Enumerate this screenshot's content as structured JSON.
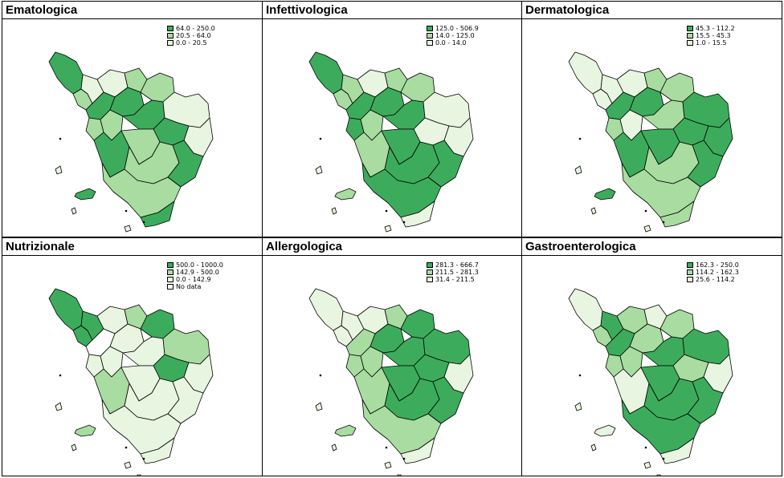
{
  "colors": {
    "high": "#3cac5c",
    "mid": "#a8dca0",
    "low": "#e8f5e0",
    "nodata": "#ffffff",
    "border": "#000000"
  },
  "maps": [
    {
      "title": "Ematologica",
      "legend": [
        {
          "label": "64.0 - 250.0",
          "cls": "high"
        },
        {
          "label": "20.5 - 64.0",
          "cls": "mid"
        },
        {
          "label": "0.0 - 20.5",
          "cls": "low"
        }
      ],
      "regions": {
        "NW": "high",
        "N1": "mid",
        "N2": "low",
        "N3": "low",
        "N4": "mid",
        "N5": "mid",
        "W1": "high",
        "W2": "mid",
        "C1": "high",
        "C2": "mid",
        "C3": "high",
        "C4": "high",
        "E1": "low",
        "E2": "high",
        "E3": "low",
        "S1": "mid",
        "S2": "mid",
        "SE": "high",
        "SW": "mid",
        "CS": "high"
      }
    },
    {
      "title": "Infettivologica",
      "legend": [
        {
          "label": "125.0 - 506.9",
          "cls": "high"
        },
        {
          "label": "14.0 - 125.0",
          "cls": "mid"
        },
        {
          "label": "0.0 - 14.0",
          "cls": "low"
        }
      ],
      "regions": {
        "NW": "high",
        "N1": "mid",
        "N2": "mid",
        "N3": "low",
        "N4": "mid",
        "N5": "mid",
        "W1": "high",
        "W2": "high",
        "C1": "high",
        "C2": "mid",
        "C3": "high",
        "C4": "mid",
        "E1": "low",
        "E2": "low",
        "E3": "low",
        "S1": "high",
        "S2": "high",
        "SE": "high",
        "SW": "high",
        "CS": "low"
      }
    },
    {
      "title": "Dermatologica",
      "legend": [
        {
          "label": "45.3 - 112.2",
          "cls": "high"
        },
        {
          "label": "15.5 - 45.3",
          "cls": "mid"
        },
        {
          "label": "1.0 - 15.5",
          "cls": "low"
        }
      ],
      "regions": {
        "NW": "low",
        "N1": "low",
        "N2": "low",
        "N3": "low",
        "N4": "mid",
        "N5": "mid",
        "W1": "high",
        "W2": "mid",
        "C1": "high",
        "C2": "low",
        "C3": "mid",
        "C4": "high",
        "E1": "high",
        "E2": "high",
        "E3": "high",
        "S1": "high",
        "S2": "mid",
        "SE": "high",
        "SW": "mid",
        "CS": "mid"
      }
    },
    {
      "title": "Nutrizionale",
      "legend": [
        {
          "label": "500.0 - 1000.0",
          "cls": "high"
        },
        {
          "label": "142.9 - 500.0",
          "cls": "mid"
        },
        {
          "label": "0.0 - 142.9",
          "cls": "low"
        },
        {
          "label": "No data",
          "cls": "nodata"
        }
      ],
      "regions": {
        "NW": "high",
        "N1": "high",
        "N2": "high",
        "N3": "low",
        "N4": "mid",
        "N5": "high",
        "W1": "nodata",
        "W2": "low",
        "C1": "low",
        "C2": "low",
        "C3": "low",
        "C4": "mid",
        "E1": "mid",
        "E2": "high",
        "E3": "low",
        "S1": "low",
        "S2": "low",
        "SE": "low",
        "SW": "low",
        "CS": "low"
      }
    },
    {
      "title": "Allergologica",
      "legend": [
        {
          "label": "281.3 - 666.7",
          "cls": "high"
        },
        {
          "label": "211.5 - 281.3",
          "cls": "mid"
        },
        {
          "label": "31.4 - 211.5",
          "cls": "low"
        }
      ],
      "regions": {
        "NW": "low",
        "N1": "low",
        "N2": "low",
        "N3": "low",
        "N4": "mid",
        "N5": "high",
        "W1": "mid",
        "W2": "mid",
        "C1": "high",
        "C2": "mid",
        "C3": "high",
        "C4": "mid",
        "E1": "high",
        "E2": "high",
        "E3": "low",
        "S1": "high",
        "S2": "high",
        "SE": "high",
        "SW": "mid",
        "CS": "low"
      }
    },
    {
      "title": "Gastroenterologica",
      "legend": [
        {
          "label": "162.3 - 250.0",
          "cls": "high"
        },
        {
          "label": "114.2 - 162.3",
          "cls": "mid"
        },
        {
          "label": "25.6 - 114.2",
          "cls": "low"
        }
      ],
      "regions": {
        "NW": "low",
        "N1": "mid",
        "N2": "high",
        "N3": "mid",
        "N4": "low",
        "N5": "mid",
        "W1": "high",
        "W2": "mid",
        "C1": "mid",
        "C2": "mid",
        "C3": "high",
        "C4": "low",
        "E1": "high",
        "E2": "mid",
        "E3": "low",
        "S1": "high",
        "S2": "high",
        "SE": "high",
        "SW": "high",
        "CS": "low"
      }
    }
  ]
}
